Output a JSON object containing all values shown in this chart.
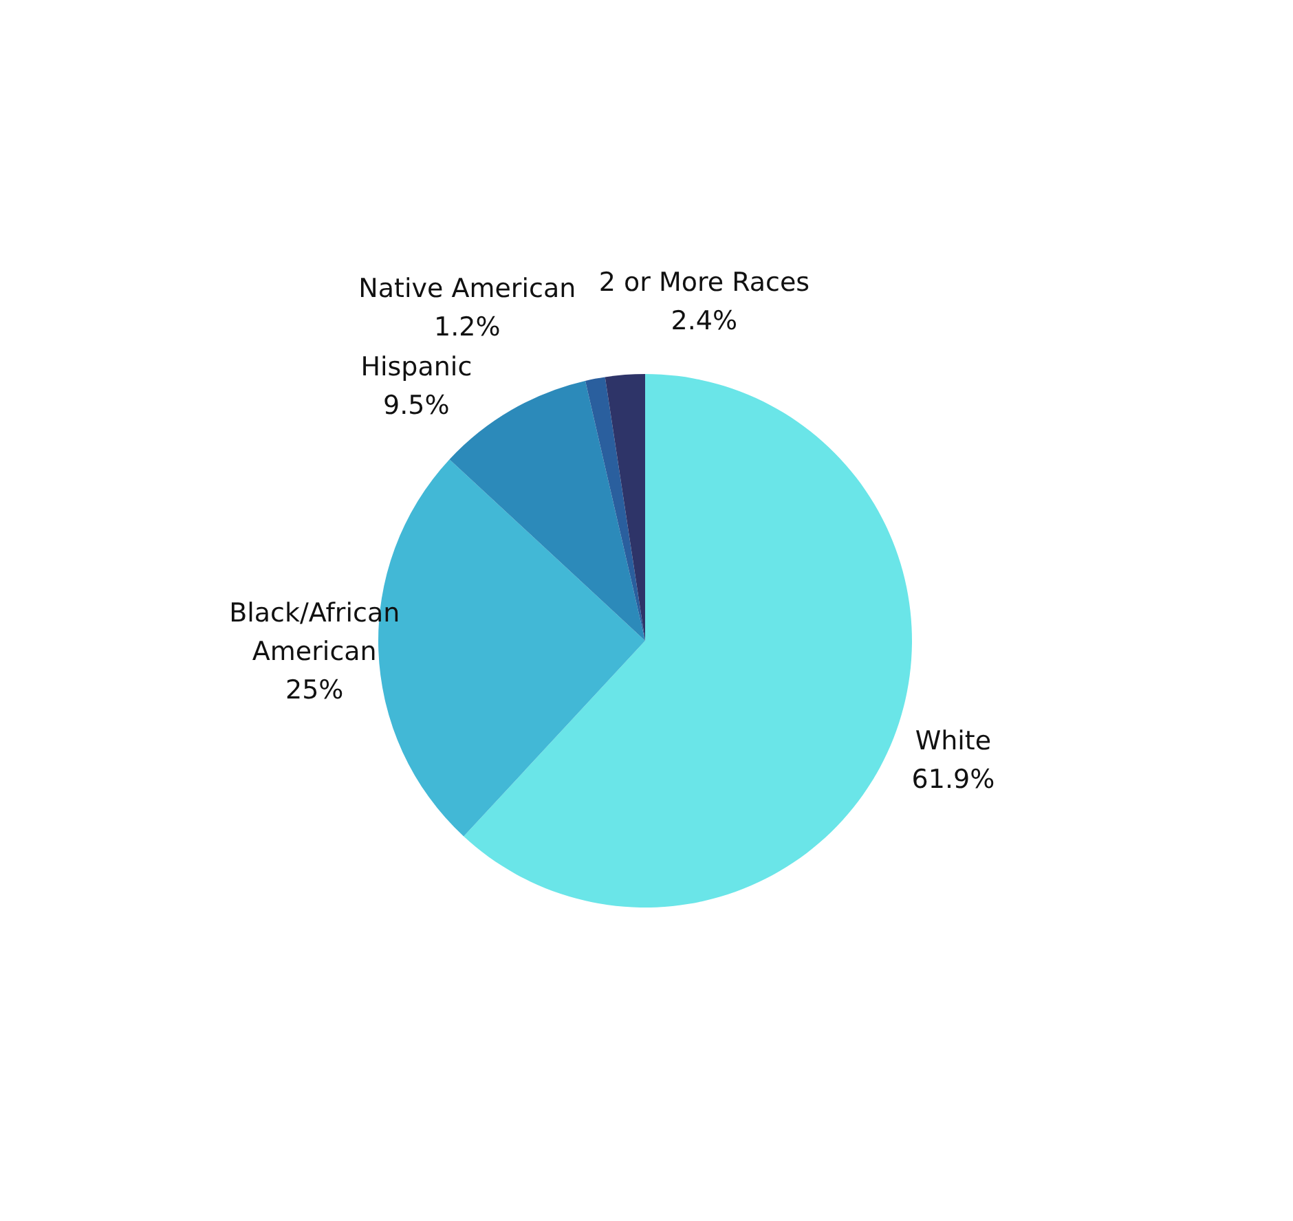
{
  "chart_data": {
    "type": "pie",
    "categories": [
      "White",
      "Black/African American",
      "Hispanic",
      "Native American",
      "2 or More Races"
    ],
    "values": [
      61.9,
      25,
      9.5,
      1.2,
      2.4
    ],
    "value_labels": [
      "61.9%",
      "25%",
      "9.5%",
      "1.2%",
      "2.4%"
    ],
    "colors": [
      "#6ae5e8",
      "#42b8d6",
      "#2c8aba",
      "#2a5f9e",
      "#2e3468"
    ],
    "legend": false
  }
}
